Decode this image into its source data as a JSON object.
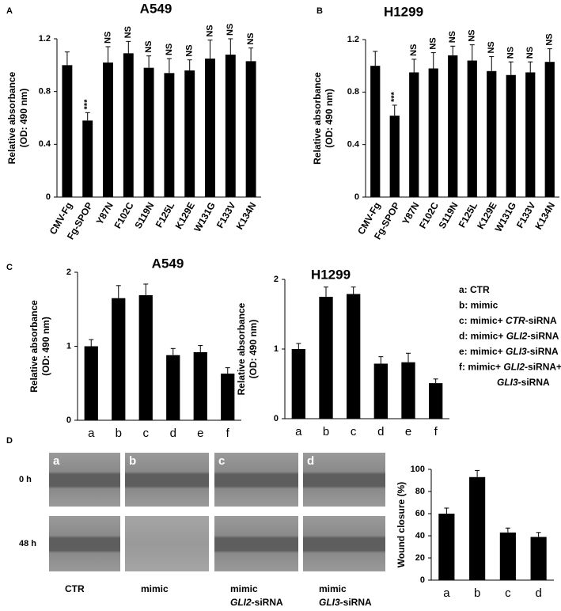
{
  "panel_labels": [
    "A",
    "B",
    "C",
    "D"
  ],
  "chart_data": [
    {
      "type": "bar",
      "title": "A549",
      "ylabel": [
        "Relative absorbance",
        "(OD: 490 nm)"
      ],
      "categories": [
        "CMV-Fg",
        "Fg-SPOP",
        "Y87N",
        "F102C",
        "S119N",
        "F125L",
        "K129E",
        "W131G",
        "F133V",
        "K134N"
      ],
      "values": [
        1.0,
        0.58,
        1.02,
        1.09,
        0.98,
        0.94,
        0.96,
        1.05,
        1.08,
        1.03
      ],
      "errors": [
        0.1,
        0.06,
        0.12,
        0.09,
        0.09,
        0.11,
        0.08,
        0.14,
        0.12,
        0.1
      ],
      "annotations": [
        null,
        "***",
        "NS",
        "NS",
        "NS",
        "NS",
        "NS",
        "NS",
        "NS",
        "NS"
      ],
      "color": "#000000",
      "ylim": [
        0,
        1.2
      ],
      "yticks": [
        0,
        0.4,
        0.8,
        1.2
      ],
      "grid": false
    },
    {
      "type": "bar",
      "title": "H1299",
      "ylabel": [
        "Relative absorbance",
        "(OD: 490 nm)"
      ],
      "categories": [
        "CMV-Fg",
        "Fg-SPOP",
        "Y87N",
        "F102C",
        "S119N",
        "F125L",
        "K129E",
        "W131G",
        "F133V",
        "K134N"
      ],
      "values": [
        1.0,
        0.62,
        0.95,
        0.98,
        1.08,
        1.04,
        0.96,
        0.93,
        0.95,
        1.03
      ],
      "errors": [
        0.11,
        0.08,
        0.1,
        0.12,
        0.07,
        0.12,
        0.11,
        0.1,
        0.08,
        0.1
      ],
      "annotations": [
        null,
        "***",
        "NS",
        "NS",
        "NS",
        "NS",
        "NS",
        "NS",
        "NS",
        "NS"
      ],
      "color": "#000000",
      "ylim": [
        0,
        1.2
      ],
      "yticks": [
        0,
        0.4,
        0.8,
        1.2
      ],
      "grid": false
    },
    {
      "type": "bar",
      "title": "A549",
      "ylabel": [
        "Relative absorbance",
        "(OD: 490 nm)"
      ],
      "categories": [
        "a",
        "b",
        "c",
        "d",
        "e",
        "f"
      ],
      "values": [
        1.0,
        1.65,
        1.69,
        0.88,
        0.92,
        0.63
      ],
      "errors": [
        0.09,
        0.17,
        0.15,
        0.09,
        0.09,
        0.08
      ],
      "color": "#000000",
      "ylim": [
        0,
        2
      ],
      "yticks": [
        0,
        1,
        2
      ],
      "grid": false
    },
    {
      "type": "bar",
      "title": "H1299",
      "ylabel": [
        "Relative absorbance",
        "(OD: 490 nm)"
      ],
      "categories": [
        "a",
        "b",
        "c",
        "d",
        "e",
        "f"
      ],
      "values": [
        1.0,
        1.75,
        1.79,
        0.79,
        0.81,
        0.51
      ],
      "errors": [
        0.08,
        0.14,
        0.1,
        0.1,
        0.13,
        0.06
      ],
      "color": "#000000",
      "ylim": [
        0,
        2
      ],
      "yticks": [
        0,
        1,
        2
      ],
      "grid": false
    },
    {
      "type": "bar",
      "ylabel": [
        "Wound closure (%)"
      ],
      "categories": [
        "a",
        "b",
        "c",
        "d"
      ],
      "values": [
        60,
        93,
        43,
        39
      ],
      "errors": [
        5,
        6,
        4,
        4
      ],
      "color": "#000000",
      "ylim": [
        0,
        100
      ],
      "yticks": [
        0,
        20,
        40,
        60,
        80,
        100
      ],
      "grid": false
    }
  ],
  "legend_c": [
    [
      {
        "text": "a: CTR"
      }
    ],
    [
      {
        "text": "b: mimic"
      }
    ],
    [
      {
        "text": "c: mimic+ "
      },
      {
        "text": "CTR",
        "italic": true
      },
      {
        "text": "-siRNA"
      }
    ],
    [
      {
        "text": "d: mimic+ "
      },
      {
        "text": "GLI2",
        "italic": true
      },
      {
        "text": "-siRNA"
      }
    ],
    [
      {
        "text": "e: mimic+ "
      },
      {
        "text": "GLI3",
        "italic": true
      },
      {
        "text": "-siRNA"
      }
    ],
    [
      {
        "text": "f: mimic+ "
      },
      {
        "text": "GLI2",
        "italic": true
      },
      {
        "text": "-siRNA+"
      }
    ],
    [
      {
        "text": "GLI3",
        "italic": true
      },
      {
        "text": "-siRNA"
      }
    ]
  ],
  "wound": {
    "rows": [
      "0 h",
      "48 h"
    ],
    "columns": [
      {
        "letter": "a",
        "caption": [
          [
            {
              "text": "CTR"
            }
          ]
        ]
      },
      {
        "letter": "b",
        "caption": [
          [
            {
              "text": "mimic"
            }
          ]
        ]
      },
      {
        "letter": "c",
        "caption": [
          [
            {
              "text": "mimic"
            }
          ],
          [
            {
              "text": "GLI2",
              "italic": true
            },
            {
              "text": "-siRNA"
            }
          ]
        ]
      },
      {
        "letter": "d",
        "caption": [
          [
            {
              "text": "mimic"
            }
          ],
          [
            {
              "text": "GLI3",
              "italic": true
            },
            {
              "text": "-siRNA"
            }
          ]
        ]
      }
    ]
  }
}
